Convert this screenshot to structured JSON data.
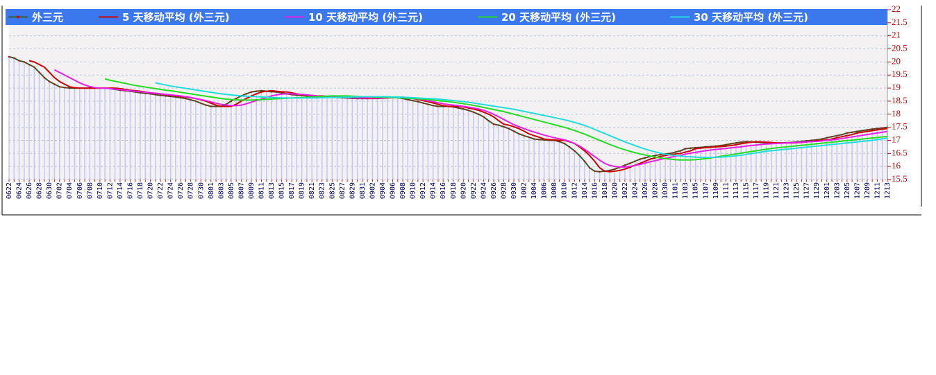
{
  "chart_data": {
    "type": "line",
    "categories": [
      "0622",
      null,
      "0624",
      null,
      "0626",
      null,
      "0628",
      null,
      "0630",
      null,
      "0702",
      null,
      "0704",
      null,
      "0706",
      null,
      "0708",
      null,
      "0710",
      null,
      "0712",
      null,
      "0714",
      null,
      "0716",
      null,
      "0718",
      null,
      "0720",
      null,
      "0722",
      null,
      "0724",
      null,
      "0726",
      null,
      "0728",
      null,
      "0730",
      null,
      "0801",
      null,
      "0803",
      null,
      "0805",
      null,
      "0807",
      null,
      "0809",
      null,
      "0811",
      null,
      "0813",
      null,
      "0815",
      null,
      "0817",
      null,
      "0819",
      null,
      "0821",
      null,
      "0823",
      null,
      "0825",
      null,
      "0827",
      null,
      "0829",
      null,
      "0831",
      null,
      "0902",
      null,
      "0904",
      null,
      "0906",
      null,
      "0908",
      null,
      "0910",
      null,
      "0912",
      null,
      "0914",
      null,
      "0916",
      null,
      "0918",
      null,
      "0920",
      null,
      "0922",
      null,
      "0924",
      null,
      "0926",
      null,
      "0928",
      null,
      "0930",
      null,
      "1002",
      null,
      "1004",
      null,
      "1006",
      null,
      "1008",
      null,
      "1010",
      null,
      "1012",
      null,
      "1014",
      null,
      "1016",
      null,
      "1018",
      null,
      "1020",
      null,
      "1022",
      null,
      "1024",
      null,
      "1026",
      null,
      "1028",
      null,
      "1030",
      null,
      "1101",
      null,
      "1103",
      null,
      "1105",
      null,
      "1107",
      null,
      "1109",
      null,
      "1111",
      null,
      "1113",
      null,
      "1115",
      null,
      "1117",
      null,
      "1119",
      null,
      "1121",
      null,
      "1123",
      null,
      "1125",
      null,
      "1127",
      null,
      "1129",
      null,
      "1201",
      null,
      "1203",
      null,
      "1205",
      null,
      "1207",
      null,
      "1209",
      null,
      "1211",
      null,
      "1213"
    ],
    "series": [
      {
        "name": "外三元",
        "color": "#2f5f2f",
        "marker_color": "#dd0000",
        "bar_color": "#c8c8f4",
        "values": [
          20.2,
          20.15,
          20.05,
          20.0,
          19.9,
          19.8,
          19.6,
          19.4,
          19.25,
          19.15,
          19.05,
          19.02,
          19.0,
          19.0,
          19.0,
          19.0,
          19.0,
          19.0,
          19.0,
          19.0,
          18.98,
          18.95,
          18.92,
          18.9,
          18.88,
          18.85,
          18.82,
          18.8,
          18.78,
          18.75,
          18.72,
          18.7,
          18.68,
          18.66,
          18.63,
          18.6,
          18.55,
          18.5,
          18.42,
          18.35,
          18.3,
          18.3,
          18.3,
          18.38,
          18.5,
          18.6,
          18.7,
          18.78,
          18.85,
          18.88,
          18.9,
          18.88,
          18.86,
          18.85,
          18.82,
          18.78,
          18.75,
          18.73,
          18.72,
          18.7,
          18.7,
          18.68,
          18.67,
          18.66,
          18.65,
          18.64,
          18.63,
          18.62,
          18.61,
          18.6,
          18.6,
          18.6,
          18.61,
          18.62,
          18.63,
          18.64,
          18.65,
          18.63,
          18.6,
          18.56,
          18.52,
          18.48,
          18.43,
          18.38,
          18.33,
          18.3,
          18.3,
          18.3,
          18.28,
          18.24,
          18.2,
          18.15,
          18.08,
          18.0,
          17.9,
          17.75,
          17.62,
          17.58,
          17.52,
          17.45,
          17.35,
          17.25,
          17.18,
          17.12,
          17.05,
          17.03,
          17.02,
          17.0,
          17.0,
          16.95,
          16.88,
          16.75,
          16.6,
          16.42,
          16.2,
          15.95,
          15.82,
          15.8,
          15.82,
          15.85,
          15.9,
          15.97,
          16.05,
          16.12,
          16.2,
          16.28,
          16.33,
          16.38,
          16.42,
          16.45,
          16.48,
          16.5,
          16.55,
          16.6,
          16.68,
          16.7,
          16.72,
          16.73,
          16.75,
          16.76,
          16.78,
          16.8,
          16.83,
          16.87,
          16.9,
          16.93,
          16.95,
          16.94,
          16.93,
          16.92,
          16.9,
          16.9,
          16.9,
          16.9,
          16.91,
          16.92,
          16.94,
          16.96,
          16.98,
          17.0,
          17.02,
          17.05,
          17.1,
          17.14,
          17.18,
          17.22,
          17.28,
          17.31,
          17.34,
          17.37,
          17.4,
          17.43,
          17.45,
          17.47,
          17.5
        ]
      },
      {
        "name": "5 天移动平均 (外三元)",
        "color": "#cc0000",
        "values": [
          null,
          null,
          null,
          null,
          20.05,
          20.0,
          19.9,
          19.8,
          19.6,
          19.4,
          19.25,
          19.15,
          19.05,
          19.02,
          19.0,
          19.0,
          19.0,
          19.0,
          19.0,
          19.0,
          19.0,
          19.0,
          18.98,
          18.95,
          18.92,
          18.9,
          18.88,
          18.85,
          18.82,
          18.8,
          18.78,
          18.75,
          18.72,
          18.7,
          18.68,
          18.66,
          18.63,
          18.6,
          18.55,
          18.5,
          18.42,
          18.35,
          18.3,
          18.3,
          18.3,
          18.38,
          18.5,
          18.6,
          18.7,
          18.78,
          18.85,
          18.88,
          18.9,
          18.88,
          18.86,
          18.85,
          18.82,
          18.78,
          18.75,
          18.73,
          18.72,
          18.7,
          18.7,
          18.68,
          18.67,
          18.66,
          18.65,
          18.64,
          18.63,
          18.62,
          18.61,
          18.6,
          18.6,
          18.6,
          18.61,
          18.62,
          18.63,
          18.64,
          18.65,
          18.63,
          18.6,
          18.56,
          18.52,
          18.48,
          18.43,
          18.38,
          18.33,
          18.3,
          18.3,
          18.3,
          18.28,
          18.24,
          18.2,
          18.15,
          18.08,
          18.0,
          17.9,
          17.75,
          17.62,
          17.58,
          17.52,
          17.45,
          17.35,
          17.25,
          17.18,
          17.12,
          17.05,
          17.03,
          17.02,
          17.0,
          17.0,
          16.95,
          16.88,
          16.75,
          16.6,
          16.42,
          16.2,
          15.95,
          15.82,
          15.8,
          15.82,
          15.85,
          15.9,
          15.97,
          16.05,
          16.12,
          16.2,
          16.28,
          16.33,
          16.38,
          16.42,
          16.45,
          16.48,
          16.5,
          16.55,
          16.6,
          16.68,
          16.7,
          16.72,
          16.73,
          16.75,
          16.76,
          16.78,
          16.8,
          16.83,
          16.87,
          16.9,
          16.93,
          16.95,
          16.94,
          16.93,
          16.92,
          16.9,
          16.9,
          16.9,
          16.9,
          16.91,
          16.92,
          16.94,
          16.96,
          16.98,
          17.0,
          17.02,
          17.05,
          17.1,
          17.14,
          17.18,
          17.22,
          17.28,
          17.31,
          17.34,
          17.37,
          17.4,
          17.43,
          17.45
        ]
      },
      {
        "name": "10 天移动平均 (外三元)",
        "color": "#e81ee8",
        "values": [
          null,
          null,
          null,
          null,
          null,
          null,
          null,
          null,
          null,
          19.7,
          19.6,
          19.5,
          19.4,
          19.3,
          19.2,
          19.12,
          19.06,
          19.02,
          19.0,
          19.0,
          18.98,
          18.96,
          18.94,
          18.92,
          18.9,
          18.88,
          18.86,
          18.84,
          18.82,
          18.8,
          18.78,
          18.76,
          18.74,
          18.72,
          18.7,
          18.67,
          18.64,
          18.6,
          18.56,
          18.52,
          18.47,
          18.42,
          18.38,
          18.35,
          18.33,
          18.33,
          18.35,
          18.4,
          18.46,
          18.52,
          18.58,
          18.64,
          18.7,
          18.74,
          18.77,
          18.78,
          18.78,
          18.77,
          18.76,
          18.74,
          18.72,
          18.7,
          18.69,
          18.68,
          18.67,
          18.66,
          18.65,
          18.64,
          18.63,
          18.62,
          18.62,
          18.62,
          18.62,
          18.62,
          18.62,
          18.63,
          18.63,
          18.63,
          18.62,
          18.61,
          18.6,
          18.58,
          18.55,
          18.52,
          18.48,
          18.44,
          18.4,
          18.37,
          18.35,
          18.33,
          18.3,
          18.27,
          18.24,
          18.2,
          18.15,
          18.08,
          18.0,
          17.9,
          17.8,
          17.7,
          17.6,
          17.52,
          17.45,
          17.38,
          17.32,
          17.26,
          17.2,
          17.15,
          17.1,
          17.06,
          17.02,
          16.96,
          16.88,
          16.78,
          16.66,
          16.52,
          16.38,
          16.24,
          16.12,
          16.04,
          16.0,
          15.98,
          15.98,
          16.0,
          16.04,
          16.08,
          16.13,
          16.18,
          16.22,
          16.27,
          16.31,
          16.35,
          16.39,
          16.43,
          16.47,
          16.51,
          16.54,
          16.57,
          16.6,
          16.63,
          16.65,
          16.67,
          16.69,
          16.71,
          16.73,
          16.75,
          16.78,
          16.8,
          16.82,
          16.84,
          16.86,
          16.87,
          16.88,
          16.89,
          16.9,
          16.91,
          16.92,
          16.93,
          16.94,
          16.95,
          16.96,
          16.98,
          17.0,
          17.02,
          17.04,
          17.07,
          17.1,
          17.13,
          17.16,
          17.19,
          17.22,
          17.25,
          17.28,
          17.31,
          17.34
        ]
      },
      {
        "name": "20 天移动平均 (外三元)",
        "color": "#22dd22",
        "values": [
          null,
          null,
          null,
          null,
          null,
          null,
          null,
          null,
          null,
          null,
          null,
          null,
          null,
          null,
          null,
          null,
          null,
          null,
          null,
          19.35,
          19.3,
          19.26,
          19.22,
          19.18,
          19.14,
          19.1,
          19.07,
          19.04,
          19.01,
          18.98,
          18.95,
          18.92,
          18.9,
          18.87,
          18.84,
          18.81,
          18.78,
          18.75,
          18.72,
          18.69,
          18.66,
          18.63,
          18.6,
          18.58,
          18.56,
          18.55,
          18.54,
          18.54,
          18.54,
          18.55,
          18.56,
          18.57,
          18.58,
          18.59,
          18.6,
          18.61,
          18.62,
          18.63,
          18.64,
          18.65,
          18.66,
          18.67,
          18.68,
          18.69,
          18.7,
          18.7,
          18.7,
          18.7,
          18.69,
          18.68,
          18.67,
          18.67,
          18.66,
          18.65,
          18.65,
          18.64,
          18.64,
          18.63,
          18.62,
          18.61,
          18.6,
          18.59,
          18.58,
          18.56,
          18.54,
          18.52,
          18.5,
          18.48,
          18.46,
          18.43,
          18.4,
          18.37,
          18.34,
          18.3,
          18.26,
          18.22,
          18.18,
          18.14,
          18.1,
          18.05,
          18.0,
          17.95,
          17.9,
          17.85,
          17.8,
          17.75,
          17.7,
          17.65,
          17.6,
          17.55,
          17.5,
          17.44,
          17.38,
          17.31,
          17.24,
          17.16,
          17.08,
          17.0,
          16.92,
          16.84,
          16.77,
          16.7,
          16.64,
          16.58,
          16.53,
          16.48,
          16.44,
          16.4,
          16.36,
          16.33,
          16.3,
          16.28,
          16.26,
          16.25,
          16.25,
          16.25,
          16.26,
          16.28,
          16.3,
          16.33,
          16.36,
          16.39,
          16.42,
          16.45,
          16.48,
          16.51,
          16.54,
          16.57,
          16.6,
          16.63,
          16.66,
          16.69,
          16.71,
          16.73,
          16.75,
          16.77,
          16.79,
          16.81,
          16.83,
          16.85,
          16.87,
          16.89,
          16.91,
          16.93,
          16.95,
          16.97,
          16.99,
          17.01,
          17.03,
          17.05,
          17.07,
          17.09,
          17.11,
          17.13,
          17.15
        ]
      },
      {
        "name": "30 天移动平均 (外三元)",
        "color": "#22dddd",
        "values": [
          null,
          null,
          null,
          null,
          null,
          null,
          null,
          null,
          null,
          null,
          null,
          null,
          null,
          null,
          null,
          null,
          null,
          null,
          null,
          null,
          null,
          null,
          null,
          null,
          null,
          null,
          null,
          null,
          null,
          19.2,
          19.16,
          19.12,
          19.08,
          19.05,
          19.02,
          18.99,
          18.96,
          18.93,
          18.9,
          18.87,
          18.84,
          18.81,
          18.78,
          18.76,
          18.74,
          18.72,
          18.7,
          18.69,
          18.68,
          18.67,
          18.66,
          18.65,
          18.64,
          18.63,
          18.62,
          18.62,
          18.62,
          18.62,
          18.62,
          18.62,
          18.62,
          18.62,
          18.63,
          18.63,
          18.64,
          18.64,
          18.65,
          18.65,
          18.66,
          18.66,
          18.67,
          18.67,
          18.67,
          18.67,
          18.67,
          18.67,
          18.66,
          18.66,
          18.65,
          18.64,
          18.63,
          18.62,
          18.61,
          18.6,
          18.59,
          18.58,
          18.56,
          18.54,
          18.52,
          18.5,
          18.48,
          18.46,
          18.43,
          18.4,
          18.37,
          18.34,
          18.31,
          18.28,
          18.25,
          18.22,
          18.19,
          18.15,
          18.11,
          18.07,
          18.03,
          17.99,
          17.95,
          17.91,
          17.87,
          17.83,
          17.79,
          17.74,
          17.69,
          17.63,
          17.57,
          17.5,
          17.42,
          17.34,
          17.26,
          17.18,
          17.1,
          17.02,
          16.94,
          16.87,
          16.8,
          16.73,
          16.67,
          16.61,
          16.56,
          16.51,
          16.47,
          16.44,
          16.42,
          16.4,
          16.38,
          16.37,
          16.36,
          16.35,
          16.35,
          16.35,
          16.35,
          16.36,
          16.37,
          16.39,
          16.41,
          16.43,
          16.46,
          16.49,
          16.52,
          16.55,
          16.58,
          16.6,
          16.62,
          16.64,
          16.66,
          16.68,
          16.7,
          16.72,
          16.74,
          16.76,
          16.78,
          16.8,
          16.82,
          16.84,
          16.86,
          16.88,
          16.9,
          16.92,
          16.94,
          16.96,
          16.98,
          17.0,
          17.03,
          17.06,
          17.09
        ]
      }
    ],
    "ylim": [
      15.5,
      22
    ],
    "yticks": [
      15.5,
      16,
      16.5,
      17,
      17.5,
      18,
      18.5,
      19,
      19.5,
      20,
      20.5,
      21,
      21.5,
      22
    ],
    "y_axis_side": "right",
    "grid": true,
    "legend": "top"
  }
}
